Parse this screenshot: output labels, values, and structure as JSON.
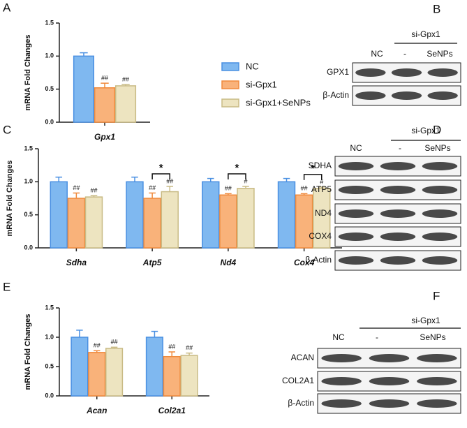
{
  "chart_data": [
    {
      "type": "bar",
      "panel": "A",
      "ylabel": "mRNA Fold Changes",
      "categories": [
        "Gpx1"
      ],
      "series": [
        {
          "name": "NC",
          "color": "#7fb8f0",
          "edge": "#4a90e2",
          "values": [
            1.0
          ],
          "errors": [
            0.05
          ],
          "annotations": [
            null
          ]
        },
        {
          "name": "si-Gpx1",
          "color": "#f9b27a",
          "edge": "#f08a3c",
          "values": [
            0.52
          ],
          "errors": [
            0.07
          ],
          "annotations": [
            "##"
          ]
        },
        {
          "name": "si-Gpx1+SeNPs",
          "color": "#ede4c0",
          "edge": "#c9bb85",
          "values": [
            0.55
          ],
          "errors": [
            0.02
          ],
          "annotations": [
            "##"
          ]
        }
      ],
      "ylim": [
        0,
        1.5
      ],
      "yticks": [
        {
          "value": 0,
          "label": "0.0"
        },
        {
          "value": 0.5,
          "label": "0.5"
        },
        {
          "value": 1,
          "label": "1.0"
        },
        {
          "value": 1.5,
          "label": "1.5"
        }
      ]
    },
    {
      "type": "bar",
      "panel": "C",
      "ylabel": "mRNA Fold Changes",
      "categories": [
        "Sdha",
        "Atp5",
        "Nd4",
        "Cox4"
      ],
      "significance": [
        null,
        "*",
        "*",
        "*"
      ],
      "series": [
        {
          "color": "#7fb8f0",
          "edge": "#4a90e2",
          "values": [
            1.0,
            1.0,
            1.0,
            1.0
          ],
          "errors": [
            0.07,
            0.07,
            0.05,
            0.05
          ],
          "annotations": [
            null,
            null,
            null,
            null
          ]
        },
        {
          "color": "#f9b27a",
          "edge": "#f08a3c",
          "values": [
            0.75,
            0.75,
            0.8,
            0.8
          ],
          "errors": [
            0.08,
            0.08,
            0.02,
            0.02
          ],
          "annotations": [
            "##",
            "##",
            "##",
            "##"
          ]
        },
        {
          "color": "#ede4c0",
          "edge": "#c9bb85",
          "values": [
            0.77,
            0.85,
            0.9,
            0.9
          ],
          "errors": [
            0.02,
            0.08,
            0.03,
            0.02
          ],
          "annotations": [
            "##",
            "##",
            "#",
            "#"
          ]
        }
      ],
      "ylim": [
        0,
        1.5
      ],
      "yticks": [
        {
          "value": 0,
          "label": "0.0"
        },
        {
          "value": 0.5,
          "label": "0.5"
        },
        {
          "value": 1,
          "label": "1.0"
        },
        {
          "value": 1.5,
          "label": "1.5"
        }
      ]
    },
    {
      "type": "bar",
      "panel": "E",
      "ylabel": "mRNA Fold Changes",
      "categories": [
        "Acan",
        "Col2a1"
      ],
      "series": [
        {
          "color": "#7fb8f0",
          "edge": "#4a90e2",
          "values": [
            1.0,
            1.0
          ],
          "errors": [
            0.12,
            0.1
          ],
          "annotations": [
            null,
            null
          ]
        },
        {
          "color": "#f9b27a",
          "edge": "#f08a3c",
          "values": [
            0.74,
            0.67
          ],
          "errors": [
            0.03,
            0.08
          ],
          "annotations": [
            "##",
            "##"
          ]
        },
        {
          "color": "#ede4c0",
          "edge": "#c9bb85",
          "values": [
            0.81,
            0.69
          ],
          "errors": [
            0.02,
            0.04
          ],
          "annotations": [
            "##",
            "##"
          ]
        }
      ],
      "ylim": [
        0,
        1.5
      ],
      "yticks": [
        {
          "value": 0,
          "label": "0.0"
        },
        {
          "value": 0.5,
          "label": "0.5"
        },
        {
          "value": 1,
          "label": "1.0"
        },
        {
          "value": 1.5,
          "label": "1.5"
        }
      ]
    }
  ],
  "blots": [
    {
      "panel": "B",
      "group_label": "si-Gpx1",
      "lanes": [
        "NC",
        "-",
        "SeNPs"
      ],
      "rows": [
        "GPX1",
        "β-Actin"
      ]
    },
    {
      "panel": "D",
      "group_label": "si-Gpx1",
      "lanes": [
        "NC",
        "-",
        "SeNPs"
      ],
      "rows": [
        "SDHA",
        "ATP5",
        "ND4",
        "COX4",
        "β-Actin"
      ]
    },
    {
      "panel": "F",
      "group_label": "si-Gpx1",
      "lanes": [
        "NC",
        "-",
        "SeNPs"
      ],
      "rows": [
        "ACAN",
        "COL2A1",
        "β-Actin"
      ]
    }
  ]
}
